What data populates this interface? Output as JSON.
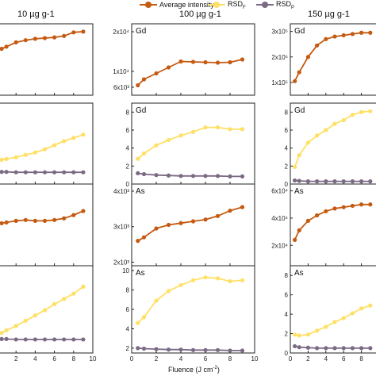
{
  "legend": [
    {
      "label": "Average intensity",
      "color": "#c55a11",
      "key": "avg"
    },
    {
      "label": "RSD",
      "sub": "F",
      "color": "#ffe066",
      "key": "rsdf"
    },
    {
      "label": "RSD",
      "sub": "P",
      "color": "#7a6a84",
      "key": "rsdp"
    }
  ],
  "columns": [
    {
      "title": "10 µg g-1"
    },
    {
      "title": "100 µg g-1"
    },
    {
      "title": "150 µg g-1"
    }
  ],
  "xlabel": "Fluence (J cm",
  "xlabel_sup": "-2",
  "xlabel_close": ")",
  "chart_data": [
    {
      "type": "line",
      "column": "10 µg g-1",
      "row": 1,
      "label": "",
      "xlim": [
        0,
        10
      ],
      "ylim": [
        0,
        10
      ],
      "series": [
        {
          "name": "Average intensity",
          "x": [
            0.5,
            1,
            2,
            3,
            4,
            5,
            6,
            7,
            8,
            9
          ],
          "y": [
            6.5,
            6.8,
            7.4,
            7.7,
            7.9,
            8.0,
            8.1,
            8.3,
            8.8,
            8.9
          ]
        }
      ]
    },
    {
      "type": "line",
      "column": "10 µg g-1",
      "row": 2,
      "label": "",
      "xlim": [
        0,
        10
      ],
      "ylim": [
        0,
        10
      ],
      "series": [
        {
          "name": "RSDF",
          "x": [
            0.5,
            1,
            2,
            3,
            4,
            5,
            6,
            7,
            8,
            9
          ],
          "y": [
            3.0,
            3.1,
            3.3,
            3.6,
            3.9,
            4.3,
            4.8,
            5.3,
            5.7,
            6.1
          ]
        },
        {
          "name": "RSDP",
          "x": [
            0.5,
            1,
            2,
            3,
            4,
            5,
            6,
            7,
            8,
            9
          ],
          "y": [
            1.5,
            1.5,
            1.45,
            1.45,
            1.45,
            1.45,
            1.45,
            1.45,
            1.45,
            1.45
          ]
        }
      ]
    },
    {
      "type": "line",
      "column": "10 µg g-1",
      "row": 3,
      "label": "",
      "xlim": [
        0,
        10
      ],
      "ylim": [
        0,
        10
      ],
      "series": [
        {
          "name": "Average intensity",
          "x": [
            0.5,
            1,
            2,
            3,
            4,
            5,
            6,
            7,
            8,
            9
          ],
          "y": [
            5.2,
            5.3,
            5.5,
            5.6,
            5.5,
            5.5,
            5.6,
            5.8,
            6.2,
            6.7
          ]
        }
      ]
    },
    {
      "type": "line",
      "column": "10 µg g-1",
      "row": 4,
      "label": "",
      "xlim": [
        0,
        10
      ],
      "ylim": [
        0,
        10
      ],
      "series": [
        {
          "name": "RSDF",
          "x": [
            0.5,
            1,
            2,
            3,
            4,
            5,
            6,
            7,
            8,
            9
          ],
          "y": [
            2.3,
            2.6,
            3.1,
            3.7,
            4.3,
            4.9,
            5.6,
            6.2,
            6.8,
            7.6
          ]
        },
        {
          "name": "RSDP",
          "x": [
            0.5,
            1,
            2,
            3,
            4,
            5,
            6,
            7,
            8,
            9
          ],
          "y": [
            1.6,
            1.6,
            1.55,
            1.55,
            1.55,
            1.55,
            1.55,
            1.55,
            1.55,
            1.55
          ]
        }
      ]
    },
    {
      "type": "line",
      "column": "100 µg g-1",
      "row": 1,
      "label": "Gd",
      "xlim": [
        0,
        10
      ],
      "ylim": [
        4000,
        22000
      ],
      "yticks": [
        6000,
        10000,
        20000
      ],
      "yticklabels": [
        "6x10³",
        "1x10⁴",
        "2x10⁴"
      ],
      "series": [
        {
          "name": "Average intensity",
          "x": [
            0.5,
            1,
            2,
            3,
            4,
            5,
            6,
            7,
            8,
            9
          ],
          "y": [
            6500,
            8000,
            9500,
            11000,
            12500,
            12400,
            12300,
            12200,
            12300,
            13000
          ]
        }
      ]
    },
    {
      "type": "line",
      "column": "100 µg g-1",
      "row": 2,
      "label": "Gd",
      "xlim": [
        0,
        10
      ],
      "ylim": [
        0,
        9
      ],
      "yticks": [
        0,
        2,
        4,
        6,
        8
      ],
      "yticklabels": [
        "0",
        "2",
        "4",
        "6",
        "8"
      ],
      "series": [
        {
          "name": "RSDF",
          "x": [
            0.5,
            1,
            2,
            3,
            4,
            5,
            6,
            7,
            8,
            9
          ],
          "y": [
            2.8,
            3.4,
            4.3,
            4.9,
            5.4,
            5.8,
            6.3,
            6.3,
            6.1,
            6.1
          ]
        },
        {
          "name": "RSDP",
          "x": [
            0.5,
            1,
            2,
            3,
            4,
            5,
            6,
            7,
            8,
            9
          ],
          "y": [
            1.2,
            1.1,
            1.0,
            0.95,
            0.9,
            0.9,
            0.9,
            0.9,
            0.85,
            0.85
          ]
        }
      ]
    },
    {
      "type": "line",
      "column": "100 µg g-1",
      "row": 3,
      "label": "As",
      "xlim": [
        0,
        10
      ],
      "ylim": [
        1900,
        4200
      ],
      "yticks": [
        2000,
        3000,
        4000
      ],
      "yticklabels": [
        "2x10³",
        "3x10³",
        "4x10³"
      ],
      "series": [
        {
          "name": "Average intensity",
          "x": [
            0.5,
            1,
            2,
            3,
            4,
            5,
            6,
            7,
            8,
            9
          ],
          "y": [
            2600,
            2700,
            2950,
            3050,
            3100,
            3150,
            3200,
            3300,
            3450,
            3550
          ]
        }
      ]
    },
    {
      "type": "line",
      "column": "100 µg g-1",
      "row": 4,
      "label": "As",
      "xlim": [
        0,
        10
      ],
      "ylim": [
        1.5,
        10.5
      ],
      "yticks": [
        2,
        4,
        6,
        8,
        10
      ],
      "yticklabels": [
        "2",
        "4",
        "6",
        "8",
        "10"
      ],
      "xticks": [
        0,
        2,
        4,
        6,
        8,
        10
      ],
      "xticklabels": [
        "0",
        "2",
        "4",
        "6",
        "8",
        "10"
      ],
      "series": [
        {
          "name": "RSDF",
          "x": [
            0.5,
            1,
            2,
            3,
            4,
            5,
            6,
            7,
            8,
            9
          ],
          "y": [
            4.6,
            5.2,
            6.9,
            7.9,
            8.5,
            9.0,
            9.3,
            9.2,
            8.9,
            9.0
          ]
        },
        {
          "name": "RSDP",
          "x": [
            0.5,
            1,
            2,
            3,
            4,
            5,
            6,
            7,
            8,
            9
          ],
          "y": [
            2.0,
            1.95,
            1.9,
            1.85,
            1.85,
            1.8,
            1.8,
            1.8,
            1.75,
            1.75
          ]
        }
      ]
    },
    {
      "type": "line",
      "column": "150 µg g-1",
      "row": 1,
      "label": "Gd",
      "xlim": [
        0,
        10
      ],
      "ylim": [
        50000,
        330000
      ],
      "yticks": [
        100000,
        200000,
        300000
      ],
      "yticklabels": [
        "1x10⁵",
        "2x10⁵",
        "3x10⁵"
      ],
      "series": [
        {
          "name": "Average intensity",
          "x": [
            0.5,
            1,
            2,
            3,
            4,
            5,
            6,
            7,
            8,
            9
          ],
          "y": [
            105000,
            140000,
            200000,
            245000,
            270000,
            280000,
            285000,
            290000,
            295000,
            295000
          ]
        }
      ]
    },
    {
      "type": "line",
      "column": "150 µg g-1",
      "row": 2,
      "label": "Gd",
      "xlim": [
        0,
        10
      ],
      "ylim": [
        0,
        9
      ],
      "yticks": [
        0,
        2,
        4,
        6,
        8
      ],
      "yticklabels": [
        "0",
        "2",
        "4",
        "6",
        "8"
      ],
      "series": [
        {
          "name": "RSDF",
          "x": [
            0.5,
            1,
            2,
            3,
            4,
            5,
            6,
            7,
            8,
            9
          ],
          "y": [
            1.9,
            3.2,
            4.6,
            5.4,
            6.0,
            6.7,
            7.1,
            7.7,
            8.0,
            8.1
          ]
        },
        {
          "name": "RSDP",
          "x": [
            0.5,
            1,
            2,
            3,
            4,
            5,
            6,
            7,
            8,
            9
          ],
          "y": [
            0.4,
            0.35,
            0.3,
            0.3,
            0.3,
            0.3,
            0.3,
            0.3,
            0.3,
            0.3
          ]
        }
      ]
    },
    {
      "type": "line",
      "column": "150 µg g-1",
      "row": 3,
      "label": "As",
      "xlim": [
        0,
        10
      ],
      "ylim": [
        5000,
        65000
      ],
      "yticks": [
        20000,
        40000,
        60000
      ],
      "yticklabels": [
        "2x10⁴",
        "4x10⁴",
        "6x10⁴"
      ],
      "series": [
        {
          "name": "Average intensity",
          "x": [
            0.5,
            1,
            2,
            3,
            4,
            5,
            6,
            7,
            8,
            9
          ],
          "y": [
            24000,
            31000,
            38000,
            42000,
            45000,
            47000,
            48000,
            49000,
            50000,
            50000
          ]
        }
      ]
    },
    {
      "type": "line",
      "column": "150 µg g-1",
      "row": 4,
      "label": "As",
      "xlim": [
        0,
        10
      ],
      "ylim": [
        0,
        9
      ],
      "yticks": [
        0,
        2,
        4,
        6,
        8
      ],
      "yticklabels": [
        "0",
        "2",
        "4",
        "6",
        "8"
      ],
      "series": [
        {
          "name": "RSDF",
          "x": [
            0.5,
            1,
            2,
            3,
            4,
            5,
            6,
            7,
            8,
            9
          ],
          "y": [
            1.9,
            1.8,
            1.9,
            2.3,
            2.7,
            3.2,
            3.6,
            4.1,
            4.6,
            4.9
          ]
        },
        {
          "name": "RSDP",
          "x": [
            0.5,
            1,
            2,
            3,
            4,
            5,
            6,
            7,
            8,
            9
          ],
          "y": [
            0.7,
            0.6,
            0.55,
            0.5,
            0.5,
            0.5,
            0.5,
            0.5,
            0.5,
            0.5
          ]
        }
      ]
    }
  ]
}
